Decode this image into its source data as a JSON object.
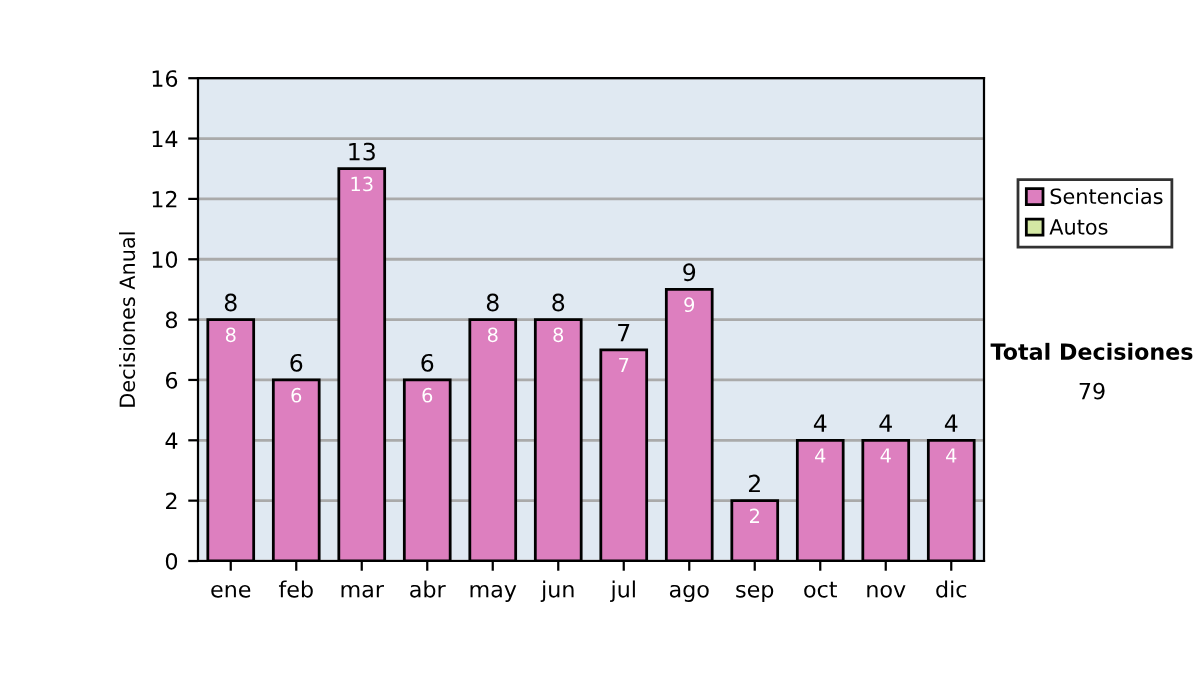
{
  "chart_data": {
    "type": "bar",
    "ylabel": "Decisiones Anual",
    "categories": [
      "ene",
      "feb",
      "mar",
      "abr",
      "may",
      "jun",
      "jul",
      "ago",
      "sep",
      "oct",
      "nov",
      "dic"
    ],
    "stacked": true,
    "data_labels": true,
    "series": [
      {
        "name": "Sentencias",
        "color": "#dd7fbf",
        "values": [
          8,
          6,
          13,
          6,
          8,
          8,
          7,
          9,
          2,
          4,
          4,
          4
        ]
      },
      {
        "name": "Autos",
        "color": "#d4e8a4",
        "values": [
          null,
          null,
          null,
          null,
          null,
          null,
          null,
          null,
          null,
          null,
          null,
          null
        ]
      }
    ],
    "totals": [
      "8",
      "6",
      "13",
      "6",
      "8",
      "8",
      "7",
      "9",
      "2",
      "4",
      "4",
      "4"
    ],
    "ylim": [
      0,
      16
    ],
    "yticks": [
      0,
      2,
      4,
      6,
      8,
      10,
      12,
      14,
      16
    ],
    "grid": "y",
    "legend": "right",
    "annotations": [
      "Total Decisiones",
      "79"
    ]
  }
}
